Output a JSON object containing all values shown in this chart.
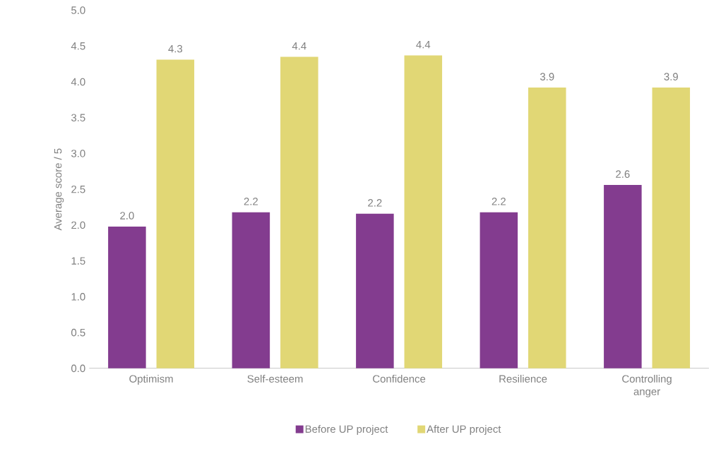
{
  "chart_data": {
    "type": "bar",
    "ylabel": "Average score / 5",
    "categories": [
      "Optimism",
      "Self-esteem",
      "Confidence",
      "Resilience",
      "Controlling anger"
    ],
    "series": [
      {
        "name": "Before UP project",
        "color": "#833c8f",
        "values": [
          1.98,
          2.18,
          2.16,
          2.18,
          2.56
        ],
        "value_labels": [
          "2.0",
          "2.2",
          "2.2",
          "2.2",
          "2.6"
        ]
      },
      {
        "name": "After UP project",
        "color": "#e1d775",
        "values": [
          4.31,
          4.35,
          4.37,
          3.92,
          3.92
        ],
        "value_labels": [
          "4.3",
          "4.4",
          "4.4",
          "3.9",
          "3.9"
        ]
      }
    ],
    "ylim": [
      0,
      5
    ],
    "yticks": [
      {
        "value": 0,
        "label": "0.0"
      },
      {
        "value": 0.5,
        "label": "0.5"
      },
      {
        "value": 1,
        "label": "1.0"
      },
      {
        "value": 1.5,
        "label": "1.5"
      },
      {
        "value": 2,
        "label": "2.0"
      },
      {
        "value": 2.5,
        "label": "2.5"
      },
      {
        "value": 3,
        "label": "3.0"
      },
      {
        "value": 3.5,
        "label": "3.5"
      },
      {
        "value": 4,
        "label": "4.0"
      },
      {
        "value": 4.5,
        "label": "4.5"
      },
      {
        "value": 5,
        "label": "5.0"
      }
    ],
    "grid": false,
    "legend": "bottom"
  }
}
